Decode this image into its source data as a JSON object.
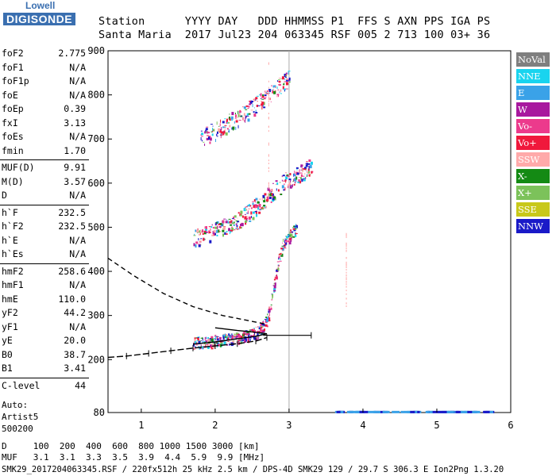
{
  "logo": {
    "top": "Lowell",
    "bottom": "DIGISONDE",
    "color": "#3a6fb0"
  },
  "header": {
    "line1": "Station      YYYY DAY   DDD HHMMSS P1  FFS S AXN PPS IGA PS",
    "line2": "Santa Maria  2017 Jul23 204 063345 RSF 005 2 713 100 03+ 36"
  },
  "params": [
    {
      "label": "foF2",
      "value": "2.775"
    },
    {
      "label": "foF1",
      "value": "N/A"
    },
    {
      "label": "foF1p",
      "value": "N/A"
    },
    {
      "label": "foE",
      "value": "N/A"
    },
    {
      "label": "foEp",
      "value": "0.39"
    },
    {
      "label": "fxI",
      "value": "3.13"
    },
    {
      "label": "foEs",
      "value": "N/A"
    },
    {
      "label": "fmin",
      "value": "1.70"
    },
    {
      "label": "MUF(D)",
      "value": "9.91"
    },
    {
      "label": "M(D)",
      "value": "3.57"
    },
    {
      "label": "D",
      "value": "N/A"
    },
    {
      "label": "h`F",
      "value": "232.5"
    },
    {
      "label": "h`F2",
      "value": "232.5"
    },
    {
      "label": "h`E",
      "value": "N/A"
    },
    {
      "label": "h`Es",
      "value": "N/A"
    },
    {
      "label": "hmF2",
      "value": "258.6"
    },
    {
      "label": "hmF1",
      "value": "N/A"
    },
    {
      "label": "hmE",
      "value": "110.0"
    },
    {
      "label": "yF2",
      "value": "44.2"
    },
    {
      "label": "yF1",
      "value": "N/A"
    },
    {
      "label": "yE",
      "value": "20.0"
    },
    {
      "label": "B0",
      "value": "38.7"
    },
    {
      "label": "B1",
      "value": "3.41"
    },
    {
      "label": "C-level",
      "value": "44"
    }
  ],
  "auto": [
    "Auto:",
    "Artist5",
    "500200"
  ],
  "legend": [
    {
      "label": "NoVal",
      "color": "#7f7f7f"
    },
    {
      "label": "NNE",
      "color": "#19d4ef"
    },
    {
      "label": "E",
      "color": "#3aa2e8"
    },
    {
      "label": "W",
      "color": "#a8189e"
    },
    {
      "label": "Vo-",
      "color": "#ec3a8c"
    },
    {
      "label": "Vo+",
      "color": "#f0183c"
    },
    {
      "label": "SSW",
      "color": "#ffaaaa"
    },
    {
      "label": "X-",
      "color": "#148a14"
    },
    {
      "label": "X+",
      "color": "#7cc25a"
    },
    {
      "label": "SSE",
      "color": "#c8c81a"
    },
    {
      "label": "NNW",
      "color": "#1a1ac8"
    }
  ],
  "table": {
    "line1": "D     100  200  400  600  800 1000 1500 3000 [km]",
    "line2": "MUF   3.1  3.1  3.3  3.5  3.9  4.4  5.9  9.9 [MHz]"
  },
  "footer": "SMK29_2017204063345.RSF / 220fx512h 25 kHz 2.5 km / DPS-4D SMK29 129 / 29.7 S 306.3 E Ion2Png 1.3.20",
  "chart_data": {
    "type": "scatter",
    "xlim": [
      0.55,
      6.0
    ],
    "ylim": [
      80,
      900
    ],
    "x_ticks": [
      1,
      2,
      3,
      4,
      5,
      6
    ],
    "y_ticks": [
      80,
      200,
      300,
      400,
      500,
      600,
      700,
      800,
      900
    ],
    "grid": "vertical line at 3 MHz",
    "traces": [
      {
        "name": "F2 1st hop",
        "points": [
          [
            1.7,
            238
          ],
          [
            1.9,
            242
          ],
          [
            2.1,
            246
          ],
          [
            2.3,
            250
          ],
          [
            2.5,
            258
          ],
          [
            2.6,
            268
          ],
          [
            2.7,
            290
          ],
          [
            2.75,
            330
          ],
          [
            2.8,
            380
          ],
          [
            2.85,
            420
          ],
          [
            2.9,
            460
          ],
          [
            3.0,
            480
          ],
          [
            3.1,
            500
          ]
        ]
      },
      {
        "name": "F2 2nd hop",
        "points": [
          [
            1.7,
            475
          ],
          [
            1.9,
            485
          ],
          [
            2.1,
            500
          ],
          [
            2.3,
            515
          ],
          [
            2.5,
            540
          ],
          [
            2.7,
            570
          ],
          [
            2.9,
            600
          ],
          [
            3.1,
            620
          ],
          [
            3.3,
            640
          ]
        ]
      },
      {
        "name": "F2 3rd hop",
        "points": [
          [
            1.8,
            705
          ],
          [
            2.0,
            720
          ],
          [
            2.2,
            740
          ],
          [
            2.4,
            760
          ],
          [
            2.6,
            785
          ],
          [
            2.8,
            810
          ],
          [
            3.0,
            840
          ]
        ]
      }
    ],
    "profile": {
      "name": "electron density profile",
      "solid": [
        [
          1.7,
          235
        ],
        [
          2.0,
          240
        ],
        [
          2.3,
          247
        ],
        [
          2.55,
          253
        ],
        [
          2.7,
          258.6
        ],
        [
          2.55,
          262
        ],
        [
          2.3,
          266
        ],
        [
          2.0,
          272
        ]
      ],
      "dashed": [
        [
          0.55,
          430
        ],
        [
          0.9,
          390
        ],
        [
          1.3,
          350
        ],
        [
          1.7,
          320
        ],
        [
          2.1,
          300
        ],
        [
          2.4,
          290
        ],
        [
          2.7,
          280
        ]
      ],
      "bottom": [
        [
          0.55,
          205
        ],
        [
          0.8,
          208
        ],
        [
          1.1,
          214
        ],
        [
          1.4,
          220
        ],
        [
          1.7,
          226
        ],
        [
          2.0,
          231
        ],
        [
          2.3,
          236
        ],
        [
          2.55,
          242
        ],
        [
          2.7,
          250
        ]
      ],
      "hmF2_bar": [
        2.65,
        3.3,
        255
      ]
    },
    "es_strip": {
      "x_range": [
        3.6,
        5.7
      ],
      "y": 82
    }
  }
}
